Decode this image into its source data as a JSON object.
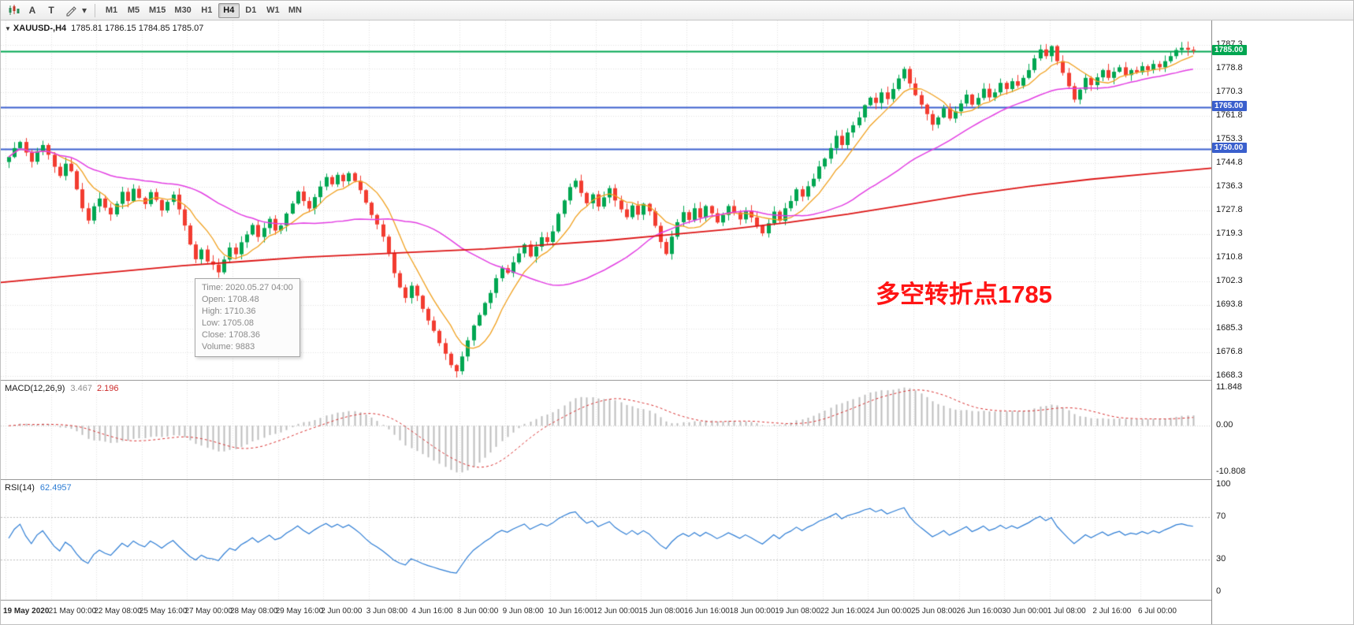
{
  "toolbar": {
    "tools": [
      {
        "name": "chart-bars-icon",
        "type": "svg-bars"
      },
      {
        "name": "text-label-icon",
        "glyph": "A"
      },
      {
        "name": "text-frame-icon",
        "glyph": "T"
      },
      {
        "name": "drawing-tools-icon",
        "type": "svg-pen"
      },
      {
        "name": "dropdown-caret-icon",
        "glyph": "▾"
      }
    ],
    "timeframes": [
      "M1",
      "M5",
      "M15",
      "M30",
      "H1",
      "H4",
      "D1",
      "W1",
      "MN"
    ],
    "active_timeframe": "H4"
  },
  "chart": {
    "collapse_glyph": "▼",
    "title_symbol": "XAUUSD-,H4",
    "title_ohlc": "1785.81 1786.15 1784.85 1785.07",
    "annotation": {
      "text": "多空转折点1785",
      "color": "#FF1414"
    },
    "tooltip": {
      "rows": [
        {
          "label": "Time:",
          "value": "2020.05.27 04:00"
        },
        {
          "label": "Open:",
          "value": "1708.48"
        },
        {
          "label": "High:",
          "value": "1710.36"
        },
        {
          "label": "Low:",
          "value": "1705.08"
        },
        {
          "label": "Close:",
          "value": "1708.36"
        },
        {
          "label": "Volume:",
          "value": "9883"
        }
      ]
    },
    "hlines": [
      {
        "price": 1785.0,
        "label": "1785.00",
        "color": "#00A651"
      },
      {
        "price": 1765.0,
        "label": "1765.00",
        "color": "#3A5FCD"
      },
      {
        "price": 1750.0,
        "label": "1750.00",
        "color": "#3A5FCD"
      }
    ]
  },
  "chart_data": {
    "type": "candlestick",
    "symbol": "XAUUSD-",
    "period": "H4",
    "title": "XAUUSD- H4 candlestick chart with moving-average overlays",
    "ylim": [
      1668.3,
      1787.3
    ],
    "render_range": [
      1667,
      1796
    ],
    "y_ticks": [
      "1787.3",
      "1778.8",
      "1770.3",
      "1761.8",
      "1753.3",
      "1744.8",
      "1736.3",
      "1727.8",
      "1719.3",
      "1710.8",
      "1702.3",
      "1693.8",
      "1685.3",
      "1676.8",
      "1668.3"
    ],
    "x_labels": [
      "19 May 2020",
      "21 May 00:00",
      "22 May 08:00",
      "25 May 16:00",
      "27 May 00:00",
      "28 May 08:00",
      "29 May 16:00",
      "2 Jun 00:00",
      "3 Jun 08:00",
      "4 Jun 16:00",
      "8 Jun 00:00",
      "9 Jun 08:00",
      "10 Jun 16:00",
      "12 Jun 00:00",
      "15 Jun 08:00",
      "16 Jun 16:00",
      "18 Jun 00:00",
      "19 Jun 08:00",
      "22 Jun 16:00",
      "24 Jun 00:00",
      "25 Jun 08:00",
      "26 Jun 16:00",
      "30 Jun 00:00",
      "1 Jul 08:00",
      "2 Jul 16:00",
      "6 Jul 00:00"
    ],
    "closes": [
      1747.0,
      1750.2,
      1752.4,
      1748.6,
      1745.3,
      1749.1,
      1751.3,
      1747.8,
      1743.5,
      1740.2,
      1744.6,
      1741.9,
      1735.4,
      1728.6,
      1724.2,
      1729.3,
      1732.1,
      1728.8,
      1726.4,
      1730.2,
      1734.5,
      1731.2,
      1735.6,
      1732.3,
      1730.1,
      1734.4,
      1731.6,
      1727.8,
      1730.9,
      1733.5,
      1728.2,
      1722.4,
      1715.6,
      1710.3,
      1713.8,
      1709.5,
      1708.4,
      1705.6,
      1710.2,
      1714.5,
      1712.1,
      1716.4,
      1719.2,
      1722.6,
      1718.3,
      1721.5,
      1724.8,
      1720.6,
      1722.4,
      1726.7,
      1730.3,
      1734.6,
      1731.2,
      1728.5,
      1732.6,
      1736.4,
      1739.8,
      1737.2,
      1740.6,
      1738.3,
      1741.2,
      1738.4,
      1735.1,
      1730.6,
      1726.2,
      1722.8,
      1718.4,
      1712.6,
      1705.3,
      1700.2,
      1696.4,
      1700.8,
      1697.2,
      1692.5,
      1688.3,
      1684.6,
      1680.2,
      1676.4,
      1672.3,
      1670.1,
      1675.4,
      1681.2,
      1686.5,
      1690.3,
      1694.6,
      1698.2,
      1703.5,
      1707.1,
      1705.4,
      1709.2,
      1712.4,
      1715.6,
      1711.3,
      1714.8,
      1718.2,
      1716.5,
      1720.3,
      1726.6,
      1731.4,
      1736.2,
      1738.5,
      1734.1,
      1730.4,
      1733.6,
      1729.2,
      1732.5,
      1735.8,
      1731.4,
      1728.2,
      1725.4,
      1729.6,
      1726.3,
      1730.2,
      1727.5,
      1722.3,
      1716.5,
      1712.2,
      1718.4,
      1723.6,
      1727.2,
      1724.4,
      1728.6,
      1725.2,
      1729.4,
      1726.8,
      1723.5,
      1726.2,
      1729.4,
      1727.1,
      1724.6,
      1727.8,
      1725.3,
      1722.4,
      1719.6,
      1723.2,
      1727.4,
      1724.1,
      1728.6,
      1731.2,
      1735.4,
      1732.8,
      1736.5,
      1739.2,
      1743.6,
      1746.4,
      1750.2,
      1754.6,
      1751.3,
      1755.8,
      1758.4,
      1761.2,
      1765.6,
      1768.3,
      1766.4,
      1770.2,
      1767.8,
      1771.4,
      1775.2,
      1778.6,
      1773.4,
      1769.2,
      1765.8,
      1762.4,
      1758.6,
      1761.2,
      1764.5,
      1760.8,
      1763.4,
      1766.2,
      1769.4,
      1765.8,
      1768.2,
      1771.5,
      1768.4,
      1770.2,
      1773.6,
      1771.4,
      1774.2,
      1772.6,
      1775.4,
      1778.2,
      1782.4,
      1785.6,
      1783.2,
      1786.8,
      1781.4,
      1777.2,
      1772.4,
      1767.6,
      1771.2,
      1775.4,
      1772.8,
      1775.6,
      1778.2,
      1775.4,
      1777.6,
      1779.2,
      1776.4,
      1778.2,
      1777.4,
      1779.6,
      1778.2,
      1780.4,
      1779.2,
      1781.4,
      1783.2,
      1785.4,
      1786.2,
      1785.5,
      1785.1
    ],
    "up_color": "#00A651",
    "down_color": "#F23C30",
    "overlays": {
      "fast_ma": {
        "type": "sma",
        "period": 8,
        "color": "#F0A01E"
      },
      "medium_ma": {
        "type": "sma",
        "period": 34,
        "color": "#E23DE2"
      },
      "slow_ma": {
        "type": "anchor_points",
        "color": "#DC1414",
        "points": [
          [
            0,
            1702
          ],
          [
            0.05,
            1704
          ],
          [
            0.1,
            1706
          ],
          [
            0.15,
            1708
          ],
          [
            0.2,
            1709.5
          ],
          [
            0.25,
            1711
          ],
          [
            0.3,
            1712
          ],
          [
            0.35,
            1713
          ],
          [
            0.4,
            1714
          ],
          [
            0.45,
            1715.5
          ],
          [
            0.5,
            1717
          ],
          [
            0.55,
            1719
          ],
          [
            0.6,
            1721
          ],
          [
            0.65,
            1723.5
          ],
          [
            0.7,
            1726.5
          ],
          [
            0.75,
            1730
          ],
          [
            0.8,
            1733.5
          ],
          [
            0.85,
            1736.5
          ],
          [
            0.9,
            1739
          ],
          [
            0.95,
            1741
          ],
          [
            1,
            1743
          ]
        ]
      }
    },
    "indicators": [
      {
        "name": "MACD",
        "params": "12,26,9",
        "values": [
          3.467,
          2.196
        ]
      },
      {
        "name": "RSI",
        "params": "14",
        "value": 62.4957
      }
    ]
  },
  "macd_panel": {
    "label": "MACD(12,26,9)",
    "value_main": "3.467",
    "value_signal": "2.196",
    "axis_top": "11.848",
    "axis_zero": "0.00",
    "axis_bottom": "-10.808",
    "histogram_color": "#bdbdbd",
    "signal_color": "#d83030"
  },
  "rsi_panel": {
    "label": "RSI(14)",
    "value": "62.4957",
    "axis": [
      "100",
      "70",
      "30",
      "0"
    ],
    "levels": [
      70,
      30
    ],
    "line_color": "#2C7CD4"
  }
}
